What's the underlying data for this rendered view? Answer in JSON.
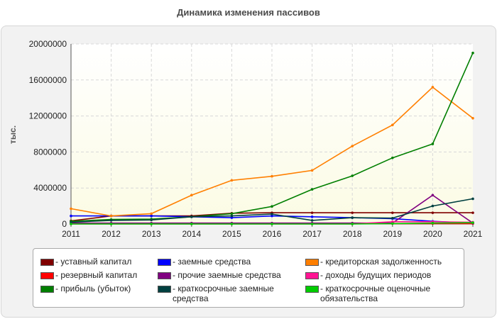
{
  "page": {
    "title": "Динамика изменения пассивов"
  },
  "chart_data": {
    "type": "line",
    "title": "Динамика изменения пассивов",
    "xlabel": "",
    "ylabel": "тыс.",
    "x": [
      2011,
      2012,
      2013,
      2014,
      2015,
      2016,
      2017,
      2018,
      2019,
      2020,
      2021
    ],
    "ylim": [
      0,
      20000000
    ],
    "yticks": [
      0,
      4000000,
      8000000,
      12000000,
      16000000,
      20000000
    ],
    "ytick_labels": [
      "0",
      "4000000",
      "8000000",
      "12000000",
      "16000000",
      "20000000"
    ],
    "grid": true,
    "series": [
      {
        "name": "уставный капитал",
        "color": "#800000",
        "values": [
          350000,
          900000,
          900000,
          900000,
          1200000,
          1250000,
          1250000,
          1250000,
          1250000,
          1250000,
          1250000
        ]
      },
      {
        "name": "заемные средства",
        "color": "#0000ff",
        "values": [
          900000,
          900000,
          900000,
          800000,
          700000,
          900000,
          800000,
          700000,
          600000,
          300000,
          100000
        ]
      },
      {
        "name": "кредиторская задолженность",
        "color": "#ff7f00",
        "values": [
          1700000,
          900000,
          1150000,
          3200000,
          4850000,
          5300000,
          5950000,
          8650000,
          11000000,
          15200000,
          11750000
        ]
      },
      {
        "name": "резервный капитал",
        "color": "#ff0000",
        "values": [
          50000,
          50000,
          50000,
          50000,
          50000,
          50000,
          50000,
          50000,
          50000,
          50000,
          50000
        ]
      },
      {
        "name": "прочие заемные средства",
        "color": "#800080",
        "values": [
          100000,
          100000,
          100000,
          100000,
          100000,
          100000,
          100000,
          100000,
          100000,
          3200000,
          100000
        ]
      },
      {
        "name": "доходы будущих периодов",
        "color": "#ff1493",
        "values": [
          0,
          0,
          0,
          0,
          0,
          0,
          0,
          0,
          250000,
          250000,
          200000
        ]
      },
      {
        "name": "прибыль (убыток)",
        "color": "#007f00",
        "values": [
          300000,
          500000,
          550000,
          800000,
          1150000,
          1950000,
          3850000,
          5350000,
          7350000,
          8900000,
          19000000
        ]
      },
      {
        "name": "краткосрочные заемные средства",
        "color": "#004040",
        "values": [
          200000,
          400000,
          450000,
          800000,
          900000,
          1100000,
          400000,
          700000,
          650000,
          2000000,
          2800000
        ]
      },
      {
        "name": "краткосрочные оценочные обязательства",
        "color": "#00cc00",
        "values": [
          0,
          0,
          0,
          0,
          0,
          0,
          0,
          0,
          50000,
          100000,
          150000
        ]
      }
    ]
  },
  "legend": [
    {
      "label": "- уставный капитал",
      "color": "#800000"
    },
    {
      "label": "- резервный капитал",
      "color": "#ff0000"
    },
    {
      "label": "- прибыль (убыток)",
      "color": "#007f00"
    },
    {
      "label": "- заемные средства",
      "color": "#0000ff"
    },
    {
      "label": "- прочие заемные средства",
      "color": "#800080"
    },
    {
      "label": "- краткосрочные заемные средства",
      "color": "#004040"
    },
    {
      "label": "- кредиторская задолженность",
      "color": "#ff7f00"
    },
    {
      "label": "- доходы будущих периодов",
      "color": "#ff1493"
    },
    {
      "label": "- краткосрочные оценочные обязательства",
      "color": "#00cc00"
    }
  ]
}
